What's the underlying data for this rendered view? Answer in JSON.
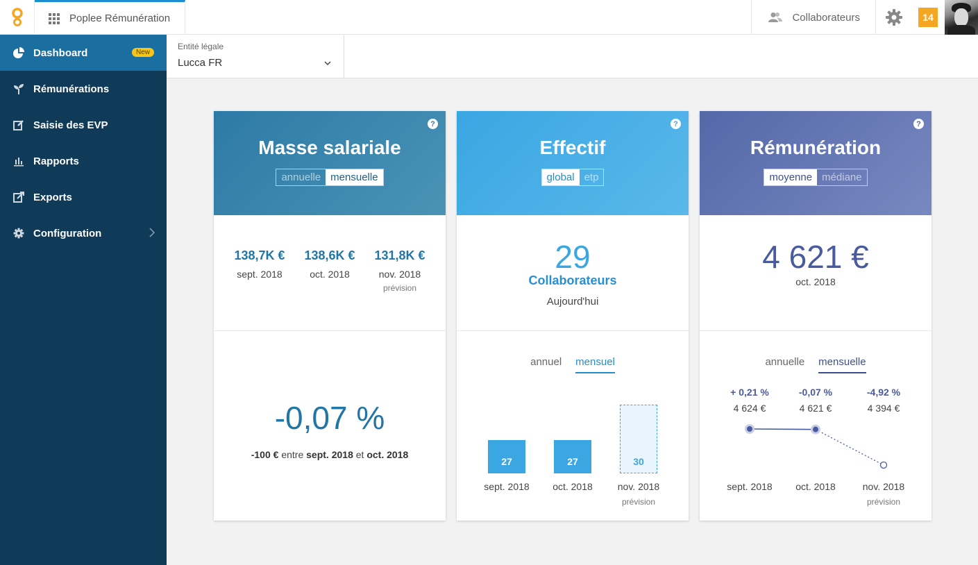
{
  "topbar": {
    "app_name": "Poplee Rémunération",
    "collaborateurs_label": "Collaborateurs",
    "notifications_count": "14"
  },
  "sidebar": {
    "items": [
      {
        "label": "Dashboard",
        "icon": "pie-chart-icon",
        "active": true,
        "badge": "New"
      },
      {
        "label": "Rémunérations",
        "icon": "sprout-icon"
      },
      {
        "label": "Saisie des EVP",
        "icon": "edit-icon"
      },
      {
        "label": "Rapports",
        "icon": "bar-chart-icon"
      },
      {
        "label": "Exports",
        "icon": "external-link-icon"
      },
      {
        "label": "Configuration",
        "icon": "gear-icon"
      }
    ]
  },
  "filter": {
    "entity_label": "Entité légale",
    "entity_value": "Lucca FR"
  },
  "cards": {
    "masse": {
      "title": "Masse salariale",
      "toggle_off": "annuelle",
      "toggle_on": "mensuelle",
      "stats": [
        {
          "value": "138,7K €",
          "label": "sept. 2018",
          "sub": ""
        },
        {
          "value": "138,6K €",
          "label": "oct. 2018",
          "sub": ""
        },
        {
          "value": "131,8K €",
          "label": "nov. 2018",
          "sub": "prévision"
        }
      ],
      "variation": "-0,07 %",
      "variation_amount": "-100 €",
      "variation_between": "entre",
      "variation_from": "sept. 2018",
      "variation_and": "et",
      "variation_to": "oct. 2018"
    },
    "effectif": {
      "title": "Effectif",
      "toggle_on": "global",
      "toggle_off": "etp",
      "count": "29",
      "count_label": "Collaborateurs",
      "count_sub": "Aujourd'hui",
      "tab_annual": "annuel",
      "tab_monthly": "mensuel",
      "bars": [
        {
          "value": 27,
          "label": "sept. 2018",
          "sub": "",
          "forecast": false
        },
        {
          "value": 27,
          "label": "oct. 2018",
          "sub": "",
          "forecast": false
        },
        {
          "value": 30,
          "label": "nov. 2018",
          "sub": "prévision",
          "forecast": true
        }
      ]
    },
    "remuneration": {
      "title": "Rémunération",
      "toggle_on": "moyenne",
      "toggle_off": "médiane",
      "amount": "4 621 €",
      "amount_sub": "oct. 2018",
      "tab_annual": "annuelle",
      "tab_monthly": "mensuelle",
      "points": [
        {
          "pct": "+ 0,21 %",
          "value": "4 624 €",
          "raw": 4624,
          "label": "sept. 2018",
          "sub": "",
          "forecast": false
        },
        {
          "pct": "-0,07 %",
          "value": "4 621 €",
          "raw": 4621,
          "label": "oct. 2018",
          "sub": "",
          "forecast": false
        },
        {
          "pct": "-4,92 %",
          "value": "4 394 €",
          "raw": 4394,
          "label": "nov. 2018",
          "sub": "prévision",
          "forecast": true
        }
      ]
    }
  },
  "colors": {
    "sidebar_bg": "#0f3a58",
    "sidebar_active": "#1a6fa0",
    "masse_accent": "#2276a6",
    "effectif_accent": "#3aa6e2",
    "remuneration_accent": "#4a5a9e",
    "badge": "#f5c518",
    "notification": "#f5a623"
  }
}
